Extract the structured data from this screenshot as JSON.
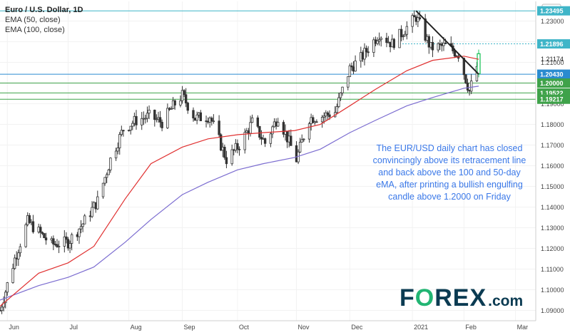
{
  "chart_data": {
    "type": "candlestick",
    "title": "Euro / U.S. Dollar, 1D",
    "currency": "USD",
    "indicators": [
      {
        "name": "EMA (50, close)",
        "color": "#e03030"
      },
      {
        "name": "EMA (100, close)",
        "color": "#7b6cd0"
      }
    ],
    "ylim": [
      1.085,
      1.2395
    ],
    "y_ticks": [
      1.09,
      1.1,
      1.11,
      1.12,
      1.13,
      1.14,
      1.15,
      1.16,
      1.17,
      1.18,
      1.19,
      1.2,
      1.21,
      1.22,
      1.23
    ],
    "y_tick_labels": [
      "1.09000",
      "1.10000",
      "1.11000",
      "1.12000",
      "1.13000",
      "1.14000",
      "1.15000",
      "1.16000",
      "1.17000",
      "1.18000",
      "1.19000",
      "1.20000",
      "1.21000",
      "1.22000",
      "1.23000"
    ],
    "x_labels": [
      "Jun",
      "Jul",
      "Aug",
      "Sep",
      "Oct",
      "Nov",
      "Dec",
      "2021",
      "Feb",
      "Mar"
    ],
    "x_ticks": [
      "2020-05-29",
      "2020-07-01",
      "2020-08-03",
      "2020-09-01",
      "2020-10-01",
      "2020-11-02",
      "2020-12-01",
      "2021-01-04",
      "2021-02-01",
      "2021-03-01"
    ],
    "x_range": [
      "2020-05-25",
      "2021-03-12"
    ],
    "last_price": 1.21174,
    "price_labels": [
      {
        "value": 1.23495,
        "text": "1.23495",
        "color": "#3fb5c8"
      },
      {
        "value": 1.21896,
        "text": "1.21896",
        "color": "#3fb5c8"
      },
      {
        "value": 1.2043,
        "text": "1.20430",
        "color": "#2a8bd0"
      },
      {
        "value": 1.2,
        "text": "1.20000",
        "color": "#3fa24a"
      },
      {
        "value": 1.19522,
        "text": "1.19522",
        "color": "#3fa24a"
      },
      {
        "value": 1.19217,
        "text": "1.19217",
        "color": "#3fa24a"
      }
    ],
    "price_path": [
      [
        "2020-05-25",
        1.09
      ],
      [
        "2020-06-02",
        1.115
      ],
      [
        "2020-06-09",
        1.133
      ],
      [
        "2020-06-15",
        1.128
      ],
      [
        "2020-06-22",
        1.122
      ],
      [
        "2020-07-01",
        1.123
      ],
      [
        "2020-07-09",
        1.132
      ],
      [
        "2020-07-17",
        1.143
      ],
      [
        "2020-07-24",
        1.163
      ],
      [
        "2020-07-31",
        1.178
      ],
      [
        "2020-08-07",
        1.182
      ],
      [
        "2020-08-14",
        1.184
      ],
      [
        "2020-08-21",
        1.181
      ],
      [
        "2020-08-28",
        1.19
      ],
      [
        "2020-09-01",
        1.194
      ],
      [
        "2020-09-08",
        1.183
      ],
      [
        "2020-09-16",
        1.184
      ],
      [
        "2020-09-25",
        1.163
      ],
      [
        "2020-10-02",
        1.17
      ],
      [
        "2020-10-09",
        1.181
      ],
      [
        "2020-10-16",
        1.171
      ],
      [
        "2020-10-23",
        1.184
      ],
      [
        "2020-11-02",
        1.163
      ],
      [
        "2020-11-09",
        1.183
      ],
      [
        "2020-11-16",
        1.184
      ],
      [
        "2020-11-23",
        1.186
      ],
      [
        "2020-12-01",
        1.207
      ],
      [
        "2020-12-07",
        1.212
      ],
      [
        "2020-12-17",
        1.224
      ],
      [
        "2020-12-24",
        1.219
      ],
      [
        "2021-01-06",
        1.232
      ],
      [
        "2021-01-14",
        1.217
      ],
      [
        "2021-01-22",
        1.218
      ],
      [
        "2021-01-29",
        1.214
      ],
      [
        "2021-02-04",
        1.196
      ],
      [
        "2021-02-09",
        1.211
      ]
    ],
    "ema50_path": [
      [
        "2020-05-25",
        1.092
      ],
      [
        "2020-06-15",
        1.108
      ],
      [
        "2020-07-01",
        1.113
      ],
      [
        "2020-07-15",
        1.121
      ],
      [
        "2020-08-01",
        1.144
      ],
      [
        "2020-08-15",
        1.161
      ],
      [
        "2020-09-01",
        1.169
      ],
      [
        "2020-09-15",
        1.173
      ],
      [
        "2020-10-01",
        1.175
      ],
      [
        "2020-10-15",
        1.176
      ],
      [
        "2020-11-01",
        1.177
      ],
      [
        "2020-11-15",
        1.18
      ],
      [
        "2020-12-01",
        1.189
      ],
      [
        "2020-12-15",
        1.197
      ],
      [
        "2021-01-01",
        1.206
      ],
      [
        "2021-01-15",
        1.211
      ],
      [
        "2021-02-01",
        1.213
      ],
      [
        "2021-02-09",
        1.2115
      ]
    ],
    "ema100_path": [
      [
        "2020-05-25",
        1.095
      ],
      [
        "2020-06-15",
        1.102
      ],
      [
        "2020-07-01",
        1.106
      ],
      [
        "2020-07-15",
        1.111
      ],
      [
        "2020-08-01",
        1.123
      ],
      [
        "2020-08-15",
        1.134
      ],
      [
        "2020-09-01",
        1.146
      ],
      [
        "2020-09-15",
        1.152
      ],
      [
        "2020-10-01",
        1.158
      ],
      [
        "2020-10-15",
        1.161
      ],
      [
        "2020-11-01",
        1.164
      ],
      [
        "2020-11-15",
        1.168
      ],
      [
        "2020-12-01",
        1.176
      ],
      [
        "2020-12-15",
        1.182
      ],
      [
        "2021-01-01",
        1.189
      ],
      [
        "2021-01-15",
        1.193
      ],
      [
        "2021-02-01",
        1.1975
      ],
      [
        "2021-02-09",
        1.1985
      ]
    ],
    "retracement_line": [
      [
        "2021-01-06",
        1.23495
      ],
      [
        "2021-02-09",
        1.2043
      ]
    ]
  },
  "annotation": "The EUR/USD daily chart has closed convincingly above its retracement line and back above the 100 and 50-day eMA, after printing a bullish engulfing candle above 1.2000 on Friday",
  "brand": {
    "pre": "F",
    "o": "O",
    "post": "REX",
    "dotcom": ".com"
  }
}
